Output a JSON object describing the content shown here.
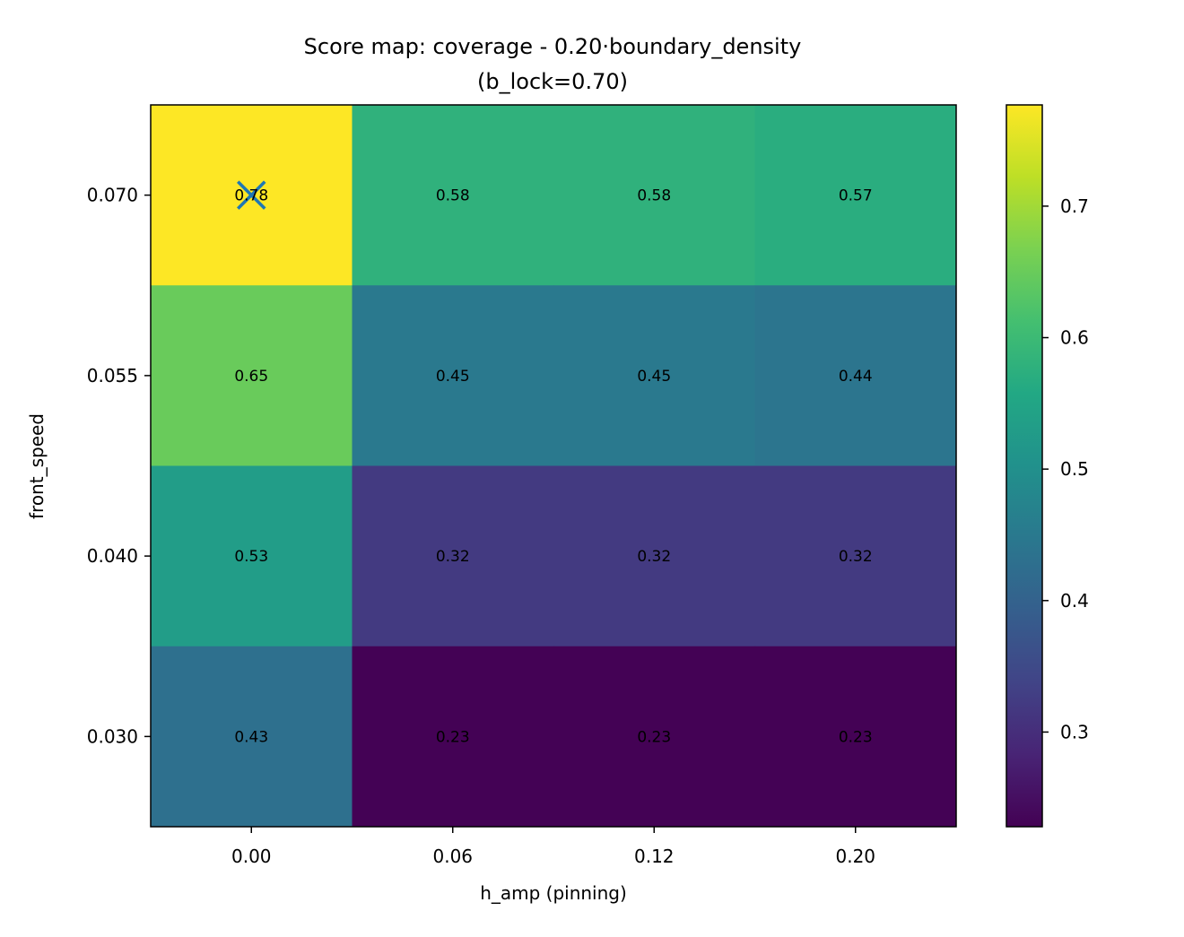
{
  "chart_data": {
    "type": "heatmap",
    "title": "Score map: coverage - 0.20·boundary_density",
    "subtitle": "(b_lock=0.70)",
    "xlabel": "h_amp (pinning)",
    "ylabel": "front_speed",
    "x_categories": [
      "0.00",
      "0.06",
      "0.12",
      "0.20"
    ],
    "y_categories": [
      "0.070",
      "0.055",
      "0.040",
      "0.030"
    ],
    "values": [
      [
        0.78,
        0.58,
        0.58,
        0.57
      ],
      [
        0.65,
        0.45,
        0.45,
        0.44
      ],
      [
        0.53,
        0.32,
        0.32,
        0.32
      ],
      [
        0.43,
        0.23,
        0.23,
        0.23
      ]
    ],
    "labels": [
      [
        "0.78",
        "0.58",
        "0.58",
        "0.57"
      ],
      [
        "0.65",
        "0.45",
        "0.45",
        "0.44"
      ],
      [
        "0.53",
        "0.32",
        "0.32",
        "0.32"
      ],
      [
        "0.43",
        "0.23",
        "0.23",
        "0.23"
      ]
    ],
    "colormap": "viridis",
    "color_range": [
      0.228,
      0.777
    ],
    "colorbar_ticks": [
      "0.3",
      "0.4",
      "0.5",
      "0.6",
      "0.7"
    ],
    "best_marker": {
      "x": "0.00",
      "y": "0.070",
      "symbol": "x",
      "color": "#1f77b4"
    }
  }
}
